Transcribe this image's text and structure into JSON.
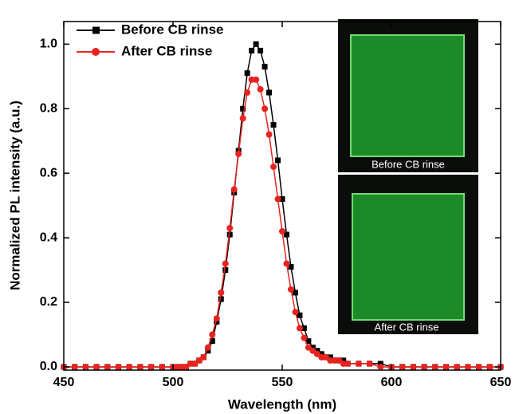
{
  "chart_data": {
    "type": "line",
    "x_label": "Wavelength (nm)",
    "y_label": "Normalized PL intensity (a.u.)",
    "x": [
      450,
      455,
      460,
      465,
      470,
      475,
      480,
      485,
      490,
      495,
      500,
      502,
      504,
      506,
      508,
      510,
      512,
      514,
      516,
      518,
      520,
      522,
      524,
      526,
      528,
      530,
      532,
      534,
      536,
      538,
      540,
      542,
      544,
      546,
      548,
      550,
      552,
      554,
      556,
      558,
      560,
      562,
      564,
      566,
      568,
      570,
      572,
      574,
      576,
      578,
      580,
      585,
      590,
      595,
      600,
      605,
      610,
      615,
      620,
      625,
      630,
      635,
      640,
      645,
      650
    ],
    "series": [
      {
        "name": "Before CB rinse",
        "color": "#000000",
        "marker": "square",
        "values": [
          0,
          0,
          0,
          0,
          0,
          0,
          0,
          0,
          0,
          0,
          0,
          0,
          0,
          0,
          0.01,
          0.01,
          0.02,
          0.03,
          0.05,
          0.08,
          0.14,
          0.21,
          0.3,
          0.41,
          0.54,
          0.67,
          0.8,
          0.91,
          0.98,
          1.0,
          0.98,
          0.93,
          0.85,
          0.75,
          0.64,
          0.52,
          0.41,
          0.31,
          0.23,
          0.16,
          0.12,
          0.08,
          0.06,
          0.05,
          0.04,
          0.03,
          0.03,
          0.02,
          0.02,
          0.02,
          0.01,
          0.01,
          0.01,
          0.01,
          0,
          0,
          0,
          0,
          0,
          0,
          0,
          0,
          0,
          0,
          0
        ]
      },
      {
        "name": "After CB rinse",
        "color": "#e8231f",
        "marker": "circle",
        "values": [
          0,
          0,
          0,
          0,
          0,
          0,
          0,
          0,
          0,
          0,
          0,
          0,
          0,
          0,
          0.01,
          0.01,
          0.02,
          0.03,
          0.06,
          0.1,
          0.15,
          0.23,
          0.32,
          0.43,
          0.55,
          0.66,
          0.77,
          0.85,
          0.89,
          0.89,
          0.86,
          0.8,
          0.72,
          0.62,
          0.52,
          0.42,
          0.32,
          0.24,
          0.17,
          0.12,
          0.09,
          0.06,
          0.05,
          0.04,
          0.03,
          0.03,
          0.02,
          0.02,
          0.02,
          0.01,
          0.01,
          0.01,
          0.01,
          0,
          0,
          0,
          0,
          0,
          0,
          0,
          0,
          0,
          0,
          0,
          0
        ]
      }
    ],
    "xlim": [
      450,
      650
    ],
    "xticks": [
      450,
      500,
      550,
      600,
      650
    ],
    "ylim": [
      -0.01,
      1.07
    ],
    "yticks": [
      {
        "value": 0,
        "label": "0.0"
      },
      0.2,
      0.4,
      0.6,
      0.8,
      {
        "value": 1,
        "label": "1.0"
      }
    ],
    "legend": "upper left",
    "inset_labels": [
      "Before CB rinse",
      "After CB rinse"
    ]
  }
}
